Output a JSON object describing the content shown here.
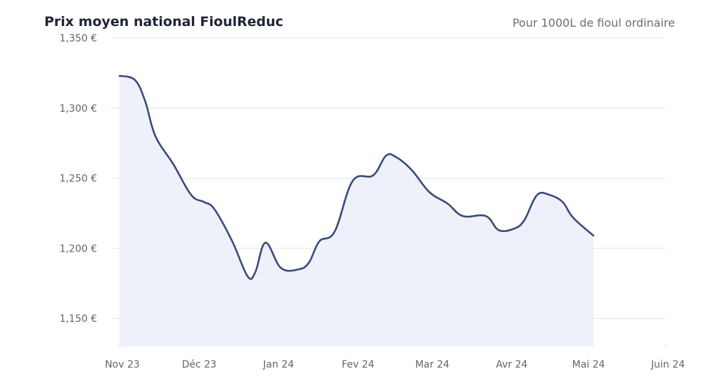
{
  "header": {
    "title": "Prix moyen national FioulReduc",
    "subtitle": "Pour 1000L de fioul ordinaire"
  },
  "colors": {
    "line": "#3a4a7a",
    "area": "#eef0fa",
    "grid": "#e3e4e8",
    "text": "#5f6470"
  },
  "chart_data": {
    "type": "area",
    "title": "Prix moyen national FioulReduc",
    "subtitle": "Pour 1000L de fioul ordinaire",
    "xlabel": "",
    "ylabel": "",
    "ylim": [
      1.13,
      1.356
    ],
    "grid": true,
    "legend": "none",
    "x_ticks": [
      "Nov 23",
      "Déc 23",
      "Jan 24",
      "Fev 24",
      "Mar 24",
      "Avr 24",
      "Mai 24",
      "Juin 24"
    ],
    "y_ticks": [
      {
        "value": 1.35,
        "label": "1,350 €"
      },
      {
        "value": 1.3,
        "label": "1,300 €"
      },
      {
        "value": 1.25,
        "label": "1,250 €"
      },
      {
        "value": 1.2,
        "label": "1,200 €"
      },
      {
        "value": 1.15,
        "label": "1,150 €"
      }
    ],
    "series": [
      {
        "values": [
          {
            "x": "2023-11-01",
            "y": 1.323
          },
          {
            "x": "2023-11-07",
            "y": 1.32
          },
          {
            "x": "2023-11-11",
            "y": 1.305
          },
          {
            "x": "2023-11-15",
            "y": 1.28
          },
          {
            "x": "2023-11-22",
            "y": 1.26
          },
          {
            "x": "2023-11-29",
            "y": 1.238
          },
          {
            "x": "2023-12-04",
            "y": 1.233
          },
          {
            "x": "2023-12-08",
            "y": 1.228
          },
          {
            "x": "2023-12-15",
            "y": 1.205
          },
          {
            "x": "2023-12-21",
            "y": 1.18
          },
          {
            "x": "2023-12-24",
            "y": 1.183
          },
          {
            "x": "2023-12-28",
            "y": 1.204
          },
          {
            "x": "2024-01-03",
            "y": 1.186
          },
          {
            "x": "2024-01-10",
            "y": 1.185
          },
          {
            "x": "2024-01-14",
            "y": 1.19
          },
          {
            "x": "2024-01-18",
            "y": 1.205
          },
          {
            "x": "2024-01-24",
            "y": 1.212
          },
          {
            "x": "2024-01-31",
            "y": 1.248
          },
          {
            "x": "2024-02-08",
            "y": 1.252
          },
          {
            "x": "2024-02-13",
            "y": 1.266
          },
          {
            "x": "2024-02-17",
            "y": 1.265
          },
          {
            "x": "2024-02-23",
            "y": 1.256
          },
          {
            "x": "2024-03-01",
            "y": 1.24
          },
          {
            "x": "2024-03-08",
            "y": 1.232
          },
          {
            "x": "2024-03-14",
            "y": 1.223
          },
          {
            "x": "2024-03-23",
            "y": 1.223
          },
          {
            "x": "2024-03-28",
            "y": 1.213
          },
          {
            "x": "2024-04-03",
            "y": 1.214
          },
          {
            "x": "2024-04-07",
            "y": 1.22
          },
          {
            "x": "2024-04-12",
            "y": 1.238
          },
          {
            "x": "2024-04-17",
            "y": 1.238
          },
          {
            "x": "2024-04-22",
            "y": 1.233
          },
          {
            "x": "2024-04-26",
            "y": 1.222
          },
          {
            "x": "2024-05-04",
            "y": 1.209
          }
        ]
      }
    ]
  }
}
